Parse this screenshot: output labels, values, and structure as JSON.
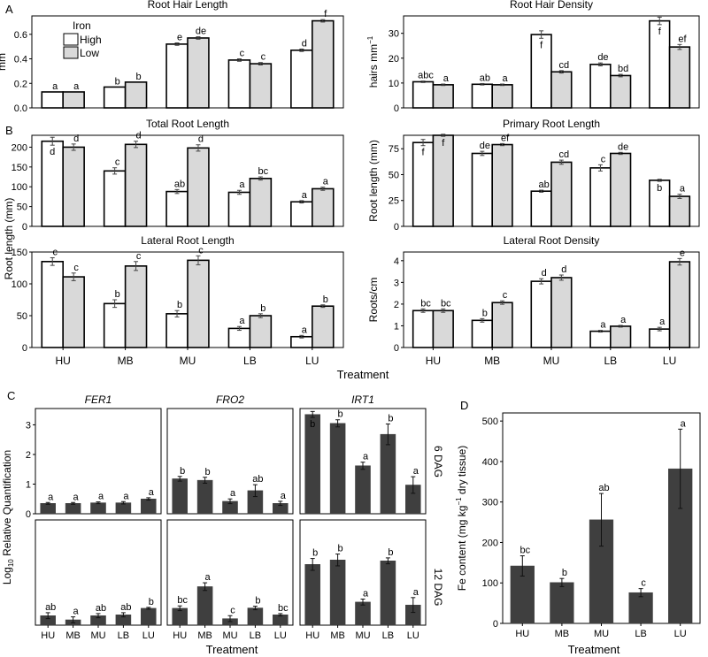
{
  "colors": {
    "high": "#ffffff",
    "low": "#d9d9d9",
    "dark": "#3f3f3f",
    "border": "#000000"
  },
  "categories": [
    "HU",
    "MB",
    "MU",
    "LB",
    "LU"
  ],
  "panel_letters": {
    "A": "A",
    "B": "B",
    "C": "C",
    "D": "D"
  },
  "legend": {
    "title": "Iron",
    "high": "High",
    "low": "Low"
  },
  "shared": {
    "bottom_xlabel": "Treatment",
    "root_length_ylabel": "Root length (mm)",
    "lateral_density_ylabel": "Roots/cm",
    "qpcr_ylabel_prefix": "Log",
    "qpcr_ylabel_sub": "10",
    "qpcr_ylabel_suffix": " Relative Quantification",
    "qpcr_xlabel": "Treatment",
    "strip_6dag": "6 DAG",
    "strip_12dag": "12 DAG",
    "fe_xlabel": "Treatment"
  },
  "chart_data": [
    {
      "id": "rhl",
      "type": "bar",
      "title": "Root Hair Length",
      "ylabel": "mm",
      "categories": [
        "HU",
        "MB",
        "MU",
        "LB",
        "LU"
      ],
      "ylim": [
        0,
        0.75
      ],
      "yticks": [
        0.0,
        0.2,
        0.4,
        0.6
      ],
      "ytick_labels": [
        "0.0",
        "0.2",
        "0.4",
        "0.6"
      ],
      "series": [
        {
          "name": "High",
          "values": [
            0.13,
            0.17,
            0.52,
            0.39,
            0.47
          ],
          "err": [
            0.0,
            0.0,
            0.01,
            0.01,
            0.01
          ],
          "letters": [
            "a",
            "b",
            "e",
            "c",
            "d"
          ]
        },
        {
          "name": "Low",
          "values": [
            0.13,
            0.21,
            0.57,
            0.36,
            0.71
          ],
          "err": [
            0.0,
            0.0,
            0.01,
            0.01,
            0.01
          ],
          "letters": [
            "a",
            "b",
            "de",
            "c",
            "f"
          ]
        }
      ]
    },
    {
      "id": "rhd",
      "type": "bar",
      "title": "Root Hair Density",
      "ylabel": "hairs mm",
      "ylabel_sup": "−1",
      "categories": [
        "HU",
        "MB",
        "MU",
        "LB",
        "LU"
      ],
      "ylim": [
        0,
        37
      ],
      "yticks": [
        0,
        10,
        20,
        30
      ],
      "ytick_labels": [
        "0",
        "10",
        "20",
        "30"
      ],
      "series": [
        {
          "name": "High",
          "values": [
            10.5,
            9.5,
            29.5,
            17.5,
            35
          ],
          "err": [
            0.3,
            0.3,
            1.5,
            0.6,
            1.5
          ],
          "letters": [
            "abc",
            "ab",
            "f",
            "de",
            "f"
          ],
          "inside": [
            false,
            false,
            true,
            false,
            true
          ]
        },
        {
          "name": "Low",
          "values": [
            9.3,
            9.3,
            14.5,
            13,
            24.5
          ],
          "err": [
            0.3,
            0.3,
            0.5,
            0.5,
            1.0
          ],
          "letters": [
            "a",
            "a",
            "cd",
            "bd",
            "ef"
          ]
        }
      ]
    },
    {
      "id": "trl",
      "type": "bar",
      "title": "Total Root Length",
      "categories": [
        "HU",
        "MB",
        "MU",
        "LB",
        "LU"
      ],
      "ylim": [
        0,
        230
      ],
      "yticks": [
        0,
        50,
        100,
        150,
        200
      ],
      "ytick_labels": [
        "0",
        "50",
        "100",
        "150",
        "200"
      ],
      "series": [
        {
          "name": "High",
          "values": [
            215,
            140,
            88,
            86,
            62
          ],
          "err": [
            10,
            8,
            5,
            5,
            3
          ],
          "letters": [
            "d",
            "c",
            "ab",
            "a",
            "a"
          ],
          "inside": [
            true,
            false,
            false,
            false,
            false
          ]
        },
        {
          "name": "Low",
          "values": [
            200,
            207,
            198,
            121,
            95
          ],
          "err": [
            8,
            8,
            8,
            4,
            4
          ],
          "letters": [
            "d",
            "d",
            "d",
            "bc",
            "a"
          ]
        }
      ]
    },
    {
      "id": "prl",
      "type": "bar",
      "title": "Primary Root Length",
      "ylabel": "Root length (mm)",
      "categories": [
        "HU",
        "MB",
        "MU",
        "LB",
        "LU"
      ],
      "ylim": [
        0,
        88
      ],
      "yticks": [
        0,
        25,
        50,
        75
      ],
      "ytick_labels": [
        "0",
        "25",
        "50",
        "75"
      ],
      "series": [
        {
          "name": "High",
          "values": [
            81,
            70.5,
            34,
            56.5,
            44.5
          ],
          "err": [
            3,
            2,
            1,
            3,
            1
          ],
          "letters": [
            "f",
            "de",
            "ab",
            "c",
            "b"
          ],
          "inside": [
            true,
            false,
            false,
            false,
            true
          ]
        },
        {
          "name": "Low",
          "values": [
            88,
            79,
            62,
            70.5,
            29
          ],
          "err": [
            1,
            1,
            2,
            1,
            2
          ],
          "letters": [
            "f",
            "ef",
            "cd",
            "de",
            "a"
          ],
          "inside": [
            true,
            false,
            false,
            false,
            false
          ]
        }
      ]
    },
    {
      "id": "lrl",
      "type": "bar",
      "title": "Lateral Root Length",
      "categories": [
        "HU",
        "MB",
        "MU",
        "LB",
        "LU"
      ],
      "ylim": [
        0,
        150
      ],
      "yticks": [
        0,
        50,
        100,
        150
      ],
      "ytick_labels": [
        "0",
        "50",
        "100",
        "150"
      ],
      "series": [
        {
          "name": "High",
          "values": [
            135,
            69,
            53,
            30,
            17
          ],
          "err": [
            6,
            6,
            5,
            3,
            2
          ],
          "letters": [
            "c",
            "b",
            "b",
            "a",
            "a"
          ]
        },
        {
          "name": "Low",
          "values": [
            111,
            128,
            137,
            50,
            65
          ],
          "err": [
            6,
            7,
            7,
            3,
            2
          ],
          "letters": [
            "c",
            "c",
            "c",
            "b",
            "b"
          ]
        }
      ]
    },
    {
      "id": "lrd",
      "type": "bar",
      "title": "Lateral Root Density",
      "ylabel": "Roots/cm",
      "categories": [
        "HU",
        "MB",
        "MU",
        "LB",
        "LU"
      ],
      "ylim": [
        0,
        4.4
      ],
      "yticks": [
        0,
        1,
        2,
        3,
        4
      ],
      "ytick_labels": [
        "0",
        "1",
        "2",
        "3",
        "4"
      ],
      "series": [
        {
          "name": "High",
          "values": [
            1.7,
            1.25,
            3.05,
            0.75,
            0.85
          ],
          "err": [
            0.08,
            0.08,
            0.12,
            0.04,
            0.08
          ],
          "letters": [
            "bc",
            "b",
            "d",
            "a",
            "a"
          ]
        },
        {
          "name": "Low",
          "values": [
            1.7,
            2.07,
            3.22,
            0.98,
            3.95
          ],
          "err": [
            0.08,
            0.08,
            0.12,
            0.04,
            0.15
          ],
          "letters": [
            "bc",
            "c",
            "d",
            "a",
            "e"
          ]
        }
      ]
    },
    {
      "id": "fer1_6",
      "type": "bar",
      "title": "FER1",
      "strip": "",
      "categories": [
        "HU",
        "MB",
        "MU",
        "LB",
        "LU"
      ],
      "ylim": [
        0,
        3.55
      ],
      "yticks": [
        0,
        1,
        2,
        3
      ],
      "ytick_labels": [
        "0",
        "1",
        "2",
        "3"
      ],
      "series": [
        {
          "name": "6 DAG",
          "values": [
            0.35,
            0.35,
            0.37,
            0.37,
            0.5
          ],
          "err": [
            0.03,
            0.03,
            0.03,
            0.04,
            0.04
          ],
          "letters": [
            "a",
            "a",
            "a",
            "a",
            "a"
          ]
        }
      ]
    },
    {
      "id": "fro2_6",
      "type": "bar",
      "title": "FRO2",
      "categories": [
        "HU",
        "MB",
        "MU",
        "LB",
        "LU"
      ],
      "ylim": [
        0,
        3.55
      ],
      "series": [
        {
          "name": "6 DAG",
          "values": [
            1.18,
            1.13,
            0.42,
            0.78,
            0.35
          ],
          "err": [
            0.08,
            0.1,
            0.08,
            0.2,
            0.07
          ],
          "letters": [
            "b",
            "b",
            "a",
            "ab",
            "a"
          ]
        }
      ]
    },
    {
      "id": "irt1_6",
      "type": "bar",
      "title": "IRT1",
      "categories": [
        "HU",
        "MB",
        "MU",
        "LB",
        "LU"
      ],
      "ylim": [
        0,
        3.55
      ],
      "series": [
        {
          "name": "6 DAG",
          "values": [
            3.35,
            3.05,
            1.62,
            2.68,
            0.97
          ],
          "err": [
            0.1,
            0.12,
            0.12,
            0.35,
            0.28
          ],
          "letters": [
            "b",
            "b",
            "a",
            "b",
            "a"
          ],
          "inside": [
            true,
            false,
            false,
            false,
            false
          ]
        }
      ]
    },
    {
      "id": "fer1_12",
      "type": "bar",
      "categories": [
        "HU",
        "MB",
        "MU",
        "LB",
        "LU"
      ],
      "ylim": [
        0,
        3.55
      ],
      "series": [
        {
          "name": "12 DAG",
          "values": [
            0.32,
            0.18,
            0.32,
            0.35,
            0.57
          ],
          "err": [
            0.1,
            0.1,
            0.07,
            0.07,
            0.03
          ],
          "letters": [
            "ab",
            "a",
            "ab",
            "ab",
            "b"
          ]
        }
      ]
    },
    {
      "id": "fro2_12",
      "type": "bar",
      "categories": [
        "HU",
        "MB",
        "MU",
        "LB",
        "LU"
      ],
      "ylim": [
        0,
        3.55
      ],
      "series": [
        {
          "name": "12 DAG",
          "values": [
            0.57,
            1.3,
            0.22,
            0.58,
            0.35
          ],
          "err": [
            0.08,
            0.13,
            0.1,
            0.06,
            0.04
          ],
          "letters": [
            "bc",
            "a",
            "c",
            "b",
            "bc"
          ]
        }
      ]
    },
    {
      "id": "irt1_12",
      "type": "bar",
      "categories": [
        "HU",
        "MB",
        "MU",
        "LB",
        "LU"
      ],
      "ylim": [
        0,
        3.55
      ],
      "series": [
        {
          "name": "12 DAG",
          "values": [
            2.05,
            2.2,
            0.78,
            2.17,
            0.68
          ],
          "err": [
            0.2,
            0.2,
            0.1,
            0.1,
            0.25
          ],
          "letters": [
            "b",
            "b",
            "a",
            "b",
            "a"
          ]
        }
      ]
    },
    {
      "id": "fe",
      "type": "bar",
      "ylabel": "Fe content (mg kg",
      "ylabel_sup": "−1",
      "ylabel_tail": " dry tissue)",
      "categories": [
        "HU",
        "MB",
        "MU",
        "LB",
        "LU"
      ],
      "ylim": [
        0,
        520
      ],
      "yticks": [
        0,
        100,
        200,
        300,
        400,
        500
      ],
      "ytick_labels": [
        "0",
        "100",
        "200",
        "300",
        "400",
        "500"
      ],
      "series": [
        {
          "name": "Fe",
          "values": [
            142,
            101,
            256,
            76,
            382
          ],
          "err": [
            25,
            10,
            65,
            10,
            98
          ],
          "letters": [
            "bc",
            "b",
            "ab",
            "c",
            "a"
          ]
        }
      ]
    }
  ]
}
